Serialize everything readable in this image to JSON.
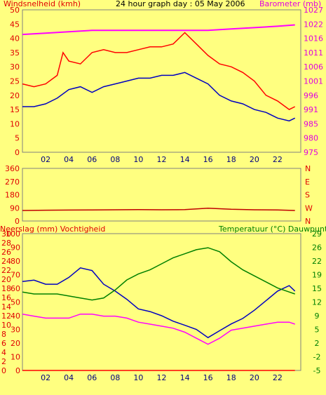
{
  "colors": {
    "background": "#ffff80",
    "border": "#808080",
    "wind_label": "#e00000",
    "baro_label": "#e000e0",
    "blue": "#0000c0",
    "red": "#ff0000",
    "magenta": "#ff00ff",
    "green": "#008000",
    "dark_red": "#c00000",
    "tick_text": "#e00000",
    "right_tick_text": "#e000e0",
    "green_text": "#008000",
    "axis_text_dark": "#000080"
  },
  "chart_data": [
    {
      "type": "line",
      "title": "24 hour graph day : 05 May 2006",
      "ylabel_left": "Windsnelheid (kmh)",
      "ylabel_right": "Barometer (mb)",
      "x_ticks": [
        "02",
        "04",
        "06",
        "08",
        "10",
        "12",
        "14",
        "16",
        "18",
        "20",
        "22"
      ],
      "xlim": [
        0,
        24
      ],
      "ylim_left": [
        0,
        50
      ],
      "ylim_right": [
        975,
        1027
      ],
      "yticks_left": [
        "0",
        "5",
        "10",
        "15",
        "20",
        "25",
        "30",
        "35",
        "40",
        "45",
        "50"
      ],
      "yticks_right": [
        "975",
        "980",
        "985",
        "991",
        "996",
        "1001",
        "1006",
        "1011",
        "1016",
        "1022",
        "1027"
      ],
      "series": [
        {
          "axis": "left",
          "color_key": "red",
          "x": [
            0,
            1,
            2,
            3,
            3.5,
            4,
            5,
            6,
            7,
            8,
            9,
            10,
            11,
            12,
            13,
            14,
            15,
            16,
            17,
            18,
            19,
            20,
            21,
            22,
            23,
            23.5
          ],
          "values": [
            24,
            23,
            24,
            27,
            35,
            32,
            31,
            35,
            36,
            35,
            35,
            36,
            37,
            37,
            38,
            42,
            38,
            34,
            31,
            30,
            28,
            25,
            20,
            18,
            15,
            16
          ]
        },
        {
          "axis": "left",
          "color_key": "blue",
          "x": [
            0,
            1,
            2,
            3,
            4,
            5,
            6,
            7,
            8,
            9,
            10,
            11,
            12,
            13,
            14,
            15,
            16,
            17,
            18,
            19,
            20,
            21,
            22,
            23,
            23.5
          ],
          "values": [
            16,
            16,
            17,
            19,
            22,
            23,
            21,
            23,
            24,
            25,
            26,
            26,
            27,
            27,
            28,
            26,
            24,
            20,
            18,
            17,
            15,
            14,
            12,
            11,
            12
          ]
        },
        {
          "axis": "right",
          "color_key": "magenta",
          "x": [
            0,
            2,
            4,
            6,
            8,
            10,
            12,
            14,
            16,
            18,
            20,
            22,
            23.5
          ],
          "values": [
            1018,
            1018.5,
            1019,
            1019.5,
            1019.5,
            1019.5,
            1019.5,
            1019.5,
            1019.5,
            1020,
            1020.5,
            1021,
            1021.5
          ]
        }
      ]
    },
    {
      "type": "line",
      "ylabel_left": "",
      "ylim_left": [
        0,
        360
      ],
      "yticks_left": [
        "0",
        "90",
        "180",
        "270",
        "360"
      ],
      "right_labels": [
        "N",
        "W",
        "S",
        "E",
        "N"
      ],
      "series": [
        {
          "color_key": "dark_red",
          "x": [
            0,
            2,
            4,
            6,
            8,
            10,
            12,
            14,
            16,
            18,
            20,
            22,
            23.5
          ],
          "values": [
            72,
            74,
            75,
            76,
            77,
            78,
            77,
            78,
            88,
            80,
            77,
            76,
            72
          ]
        }
      ]
    },
    {
      "type": "line",
      "ylabel_left": "Neerslag (mm) Vochtigheid",
      "ylabel_right": "Temperatuur (°C) Dauwpunt",
      "x_ticks": [
        "02",
        "04",
        "06",
        "08",
        "10",
        "12",
        "14",
        "16",
        "18",
        "20",
        "22"
      ],
      "ylim_left": [
        0,
        100
      ],
      "yticks_left_outer": [
        "0",
        "2",
        "4",
        "6",
        "8",
        "10",
        "12",
        "14",
        "16",
        "18",
        "20",
        "22",
        "24",
        "26",
        "28",
        "30"
      ],
      "yticks_left_inner": [
        "0",
        "10",
        "20",
        "30",
        "40",
        "50",
        "60",
        "70",
        "80",
        "90",
        "100"
      ],
      "yticks_right": [
        "-5",
        "-2",
        "2",
        "5",
        "9",
        "12",
        "15",
        "19",
        "22",
        "26",
        "29"
      ],
      "ylim_right": [
        -5,
        29
      ],
      "series": [
        {
          "axis": "left",
          "color_key": "blue",
          "x": [
            0,
            1,
            2,
            3,
            4,
            5,
            6,
            7,
            8,
            9,
            10,
            11,
            12,
            13,
            14,
            15,
            16,
            17,
            18,
            19,
            20,
            21,
            22,
            23,
            23.5
          ],
          "values": [
            65,
            66,
            63,
            63,
            68,
            75,
            73,
            63,
            58,
            52,
            45,
            43,
            40,
            36,
            33,
            30,
            24,
            29,
            34,
            38,
            44,
            51,
            58,
            62,
            58
          ]
        },
        {
          "axis": "right",
          "color_key": "green",
          "x": [
            0,
            1,
            2,
            3,
            4,
            5,
            6,
            7,
            8,
            9,
            10,
            11,
            12,
            13,
            14,
            15,
            16,
            17,
            18,
            19,
            20,
            21,
            22,
            23,
            23.5
          ],
          "values": [
            14.5,
            14,
            14,
            14,
            13.5,
            13,
            12.5,
            13,
            15,
            17.5,
            19,
            20,
            21.5,
            23,
            24,
            25,
            25.5,
            24.5,
            22,
            20,
            18.5,
            17,
            15.5,
            14.5,
            14
          ]
        },
        {
          "axis": "right",
          "color_key": "magenta",
          "x": [
            0,
            1,
            2,
            3,
            4,
            5,
            6,
            7,
            8,
            9,
            10,
            11,
            12,
            13,
            14,
            15,
            16,
            17,
            18,
            19,
            20,
            21,
            22,
            23,
            23.5
          ],
          "values": [
            9,
            8.5,
            8,
            8,
            8,
            9,
            9,
            8.5,
            8.5,
            8,
            7,
            6.5,
            6,
            5.5,
            4.5,
            3,
            1.5,
            3,
            5,
            5.5,
            6,
            6.5,
            7,
            7,
            6.5
          ]
        },
        {
          "axis": "left",
          "color_key": "red",
          "x": [
            0,
            23.5
          ],
          "values": [
            0,
            0
          ]
        }
      ]
    }
  ]
}
